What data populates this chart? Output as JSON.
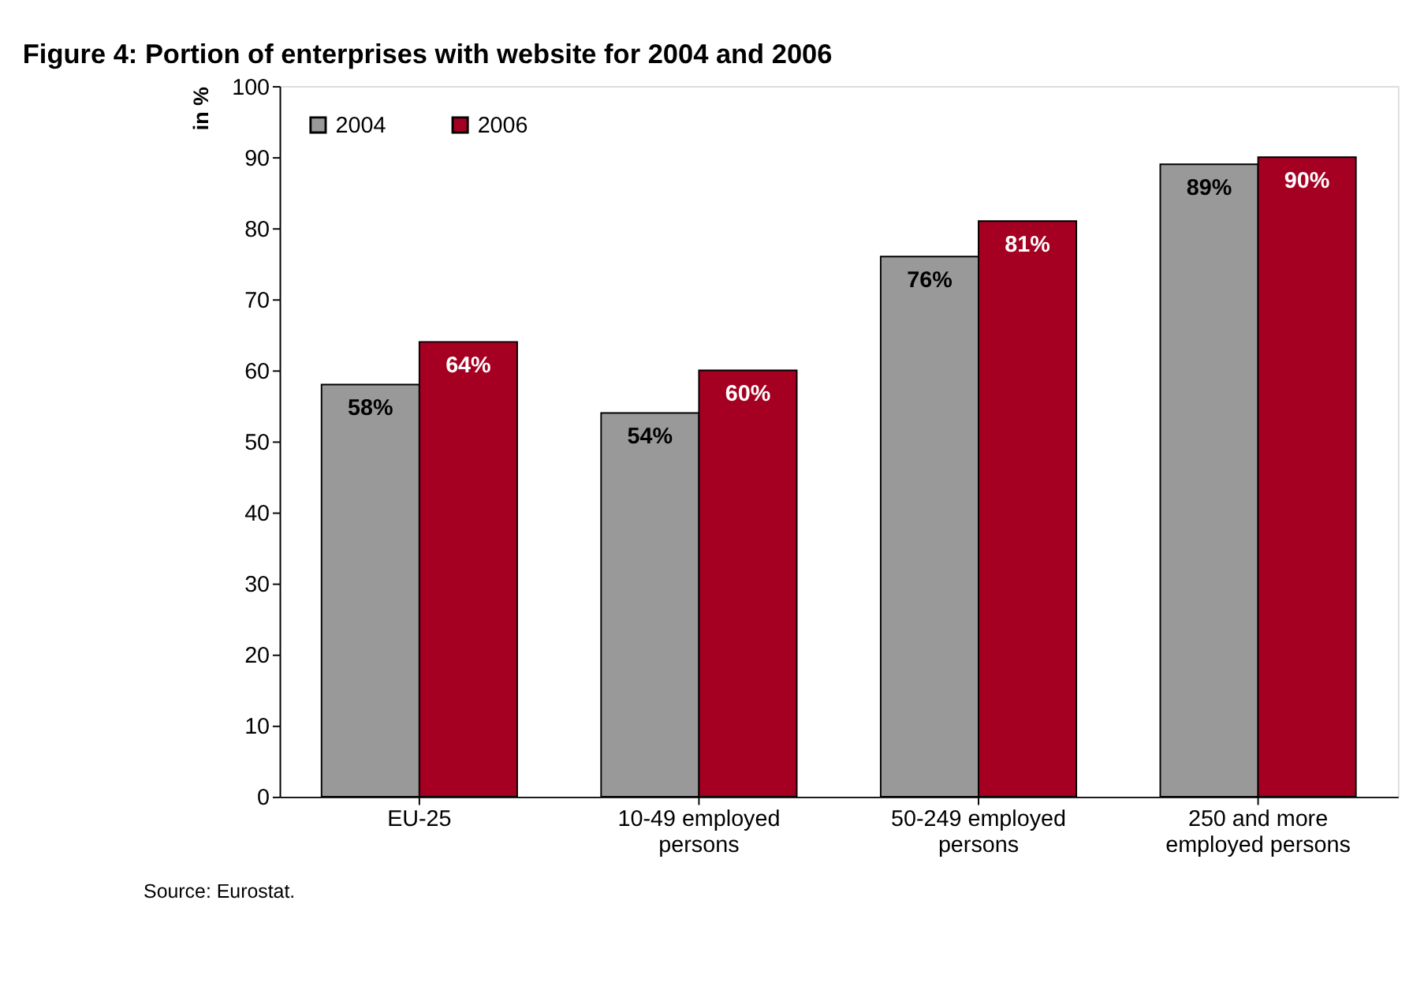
{
  "chart_data": {
    "type": "bar",
    "title": "Figure 4: Portion of enterprises with website for 2004 and 2006",
    "ylabel": "in %",
    "categories": [
      "EU-25",
      "10-49 employed persons",
      "50-249 employed persons",
      "250 and more employed persons"
    ],
    "series": [
      {
        "name": "2004",
        "color": "#999999",
        "values": [
          58,
          54,
          76,
          89
        ],
        "value_labels": [
          "58%",
          "54%",
          "76%",
          "89%"
        ]
      },
      {
        "name": "2006",
        "color": "#a50021",
        "values": [
          64,
          60,
          81,
          90
        ],
        "value_labels": [
          "64%",
          "60%",
          "81%",
          "90%"
        ]
      }
    ],
    "ylim": [
      0,
      100
    ],
    "yticks": [
      0,
      10,
      20,
      30,
      40,
      50,
      60,
      70,
      80,
      90,
      100
    ],
    "grid": false,
    "legend": "top left",
    "annotations": [
      "Source: Eurostat."
    ]
  }
}
